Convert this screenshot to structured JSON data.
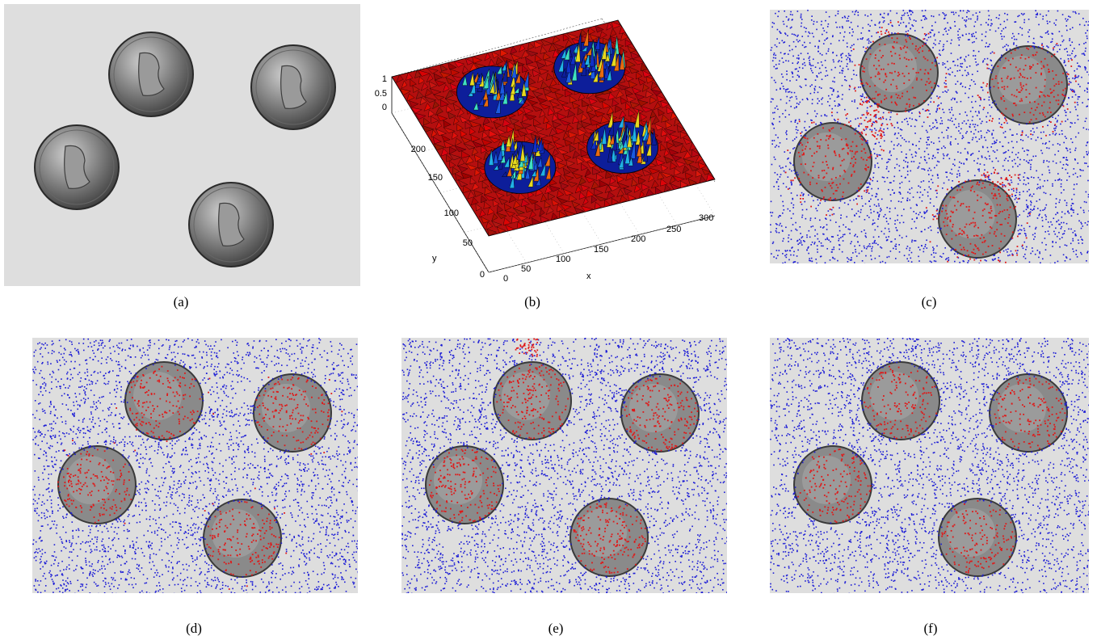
{
  "captions": {
    "a": "(a)",
    "b": "(b)",
    "c": "(c)",
    "d": "(d)",
    "e": "(e)",
    "f": "(f)"
  },
  "panel_b": {
    "z_ticks": [
      "1",
      "0.5",
      "0"
    ],
    "y_ticks": [
      "200",
      "150",
      "100",
      "50",
      "0"
    ],
    "x_ticks": [
      "0",
      "50",
      "100",
      "150",
      "200",
      "250",
      "300"
    ],
    "ylabel": "y",
    "xlabel": "x"
  },
  "colors": {
    "background_point": "#1a1ad6",
    "coin_point": "#e01818",
    "image_background": "#dedede",
    "surface_red": "#b40f0f"
  }
}
